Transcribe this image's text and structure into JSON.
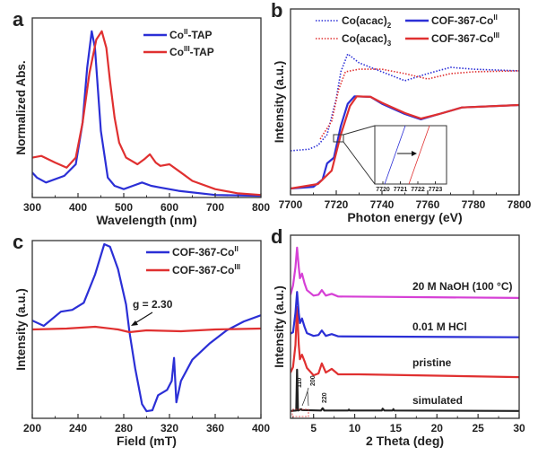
{
  "chart_data": [
    {
      "id": "a",
      "panel_label": "a",
      "type": "line",
      "xlabel": "Wavelength (nm)",
      "ylabel": "Normalized Abs.",
      "xlim": [
        300,
        800
      ],
      "ylim": [
        0,
        1.08
      ],
      "xticks": [
        300,
        400,
        500,
        600,
        700,
        800
      ],
      "xminor": 50,
      "series": [
        {
          "name": {
            "base": "Co",
            "sup": "II",
            "suffix": "-TAP"
          },
          "color": "#2b2fd6",
          "style": "solid",
          "points": [
            [
              300,
              0.15
            ],
            [
              310,
              0.12
            ],
            [
              330,
              0.09
            ],
            [
              370,
              0.13
            ],
            [
              395,
              0.2
            ],
            [
              410,
              0.45
            ],
            [
              420,
              0.78
            ],
            [
              430,
              1.0
            ],
            [
              437,
              0.9
            ],
            [
              450,
              0.4
            ],
            [
              465,
              0.12
            ],
            [
              480,
              0.07
            ],
            [
              500,
              0.05
            ],
            [
              520,
              0.07
            ],
            [
              540,
              0.09
            ],
            [
              560,
              0.07
            ],
            [
              580,
              0.06
            ],
            [
              620,
              0.04
            ],
            [
              700,
              0.015
            ],
            [
              800,
              0.01
            ]
          ]
        },
        {
          "name": {
            "base": "Co",
            "sup": "III",
            "suffix": "-TAP"
          },
          "color": "#e03030",
          "style": "solid",
          "points": [
            [
              300,
              0.24
            ],
            [
              320,
              0.25
            ],
            [
              350,
              0.21
            ],
            [
              375,
              0.18
            ],
            [
              395,
              0.24
            ],
            [
              410,
              0.45
            ],
            [
              425,
              0.75
            ],
            [
              440,
              0.95
            ],
            [
              452,
              1.0
            ],
            [
              462,
              0.9
            ],
            [
              470,
              0.7
            ],
            [
              480,
              0.48
            ],
            [
              490,
              0.33
            ],
            [
              505,
              0.24
            ],
            [
              530,
              0.2
            ],
            [
              545,
              0.23
            ],
            [
              557,
              0.26
            ],
            [
              570,
              0.21
            ],
            [
              580,
              0.19
            ],
            [
              600,
              0.2
            ],
            [
              625,
              0.15
            ],
            [
              650,
              0.1
            ],
            [
              700,
              0.05
            ],
            [
              750,
              0.025
            ],
            [
              800,
              0.015
            ]
          ]
        }
      ]
    },
    {
      "id": "b",
      "panel_label": "b",
      "type": "line",
      "xlabel": "Photon energy (eV)",
      "ylabel": "Intensity (a.u.)",
      "xlim": [
        7700,
        7800
      ],
      "ylim": [
        0,
        1
      ],
      "xticks": [
        7700,
        7720,
        7740,
        7760,
        7780,
        7800
      ],
      "xminor": 10,
      "inset": {
        "xticks": [
          "7720",
          "7721",
          "7722",
          "7723"
        ]
      },
      "series": [
        {
          "name": {
            "base": "Co(acac)",
            "sub": "2"
          },
          "color": "#2b2fd6",
          "style": "dotted",
          "points": [
            [
              7700,
              0.237
            ],
            [
              7708,
              0.245
            ],
            [
              7712,
              0.266
            ],
            [
              7716,
              0.324
            ],
            [
              7720,
              0.517
            ],
            [
              7722,
              0.662
            ],
            [
              7725,
              0.758
            ],
            [
              7730,
              0.71
            ],
            [
              7740,
              0.662
            ],
            [
              7750,
              0.614
            ],
            [
              7760,
              0.652
            ],
            [
              7770,
              0.686
            ],
            [
              7780,
              0.676
            ],
            [
              7800,
              0.667
            ]
          ]
        },
        {
          "name": {
            "base": "Co(acac)",
            "sub": "3"
          },
          "color": "#e03030",
          "style": "dotted",
          "points": [
            [
              7713,
              0.3
            ],
            [
              7718,
              0.396
            ],
            [
              7721,
              0.565
            ],
            [
              7724,
              0.662
            ],
            [
              7730,
              0.676
            ],
            [
              7740,
              0.676
            ],
            [
              7750,
              0.652
            ],
            [
              7760,
              0.623
            ],
            [
              7770,
              0.652
            ],
            [
              7780,
              0.662
            ],
            [
              7800,
              0.667
            ]
          ]
        },
        {
          "name": {
            "base": "COF-367-Co",
            "sup": "II"
          },
          "color": "#2b2fd6",
          "style": "solid",
          "points": [
            [
              7700,
              0.034
            ],
            [
              7710,
              0.043
            ],
            [
              7714,
              0.082
            ],
            [
              7716,
              0.169
            ],
            [
              7719,
              0.2
            ],
            [
              7722,
              0.37
            ],
            [
              7725,
              0.49
            ],
            [
              7728,
              0.53
            ],
            [
              7735,
              0.527
            ],
            [
              7740,
              0.49
            ],
            [
              7750,
              0.435
            ],
            [
              7757,
              0.406
            ],
            [
              7765,
              0.435
            ],
            [
              7775,
              0.47
            ],
            [
              7800,
              0.483
            ]
          ]
        },
        {
          "name": {
            "base": "COF-367-Co",
            "sup": "III"
          },
          "color": "#e03030",
          "style": "solid",
          "points": [
            [
              7700,
              0.034
            ],
            [
              7712,
              0.058
            ],
            [
              7718,
              0.13
            ],
            [
              7722,
              0.324
            ],
            [
              7726,
              0.478
            ],
            [
              7729,
              0.53
            ],
            [
              7735,
              0.527
            ],
            [
              7740,
              0.495
            ],
            [
              7750,
              0.44
            ],
            [
              7757,
              0.41
            ],
            [
              7765,
              0.435
            ],
            [
              7775,
              0.47
            ],
            [
              7800,
              0.483
            ]
          ]
        }
      ]
    },
    {
      "id": "c",
      "panel_label": "c",
      "type": "line",
      "xlabel": "Field (mT)",
      "ylabel": "Intensity (a.u.)",
      "xlim": [
        200,
        400
      ],
      "ylim": [
        0,
        1
      ],
      "xticks": [
        200,
        240,
        280,
        320,
        360,
        400
      ],
      "xminor": 20,
      "annotations": [
        "g = 2.30"
      ],
      "series": [
        {
          "name": {
            "base": "COF-367-Co",
            "sup": "II"
          },
          "color": "#2b2fd6",
          "style": "solid",
          "points": [
            [
              200,
              0.55
            ],
            [
              210,
              0.52
            ],
            [
              225,
              0.6
            ],
            [
              235,
              0.61
            ],
            [
              245,
              0.65
            ],
            [
              255,
              0.81
            ],
            [
              263,
              0.98
            ],
            [
              268,
              0.965
            ],
            [
              275,
              0.84
            ],
            [
              282,
              0.64
            ],
            [
              285,
              0.485
            ],
            [
              290,
              0.28
            ],
            [
              296,
              0.08
            ],
            [
              300,
              0.04
            ],
            [
              305,
              0.045
            ],
            [
              310,
              0.13
            ],
            [
              318,
              0.16
            ],
            [
              322,
              0.21
            ],
            [
              324,
              0.34
            ],
            [
              326,
              0.09
            ],
            [
              330,
              0.21
            ],
            [
              340,
              0.33
            ],
            [
              355,
              0.42
            ],
            [
              370,
              0.495
            ],
            [
              385,
              0.545
            ],
            [
              400,
              0.58
            ]
          ]
        },
        {
          "name": {
            "base": "COF-367-Co",
            "sup": "III"
          },
          "color": "#e03030",
          "style": "solid",
          "points": [
            [
              200,
              0.5
            ],
            [
              230,
              0.505
            ],
            [
              255,
              0.515
            ],
            [
              275,
              0.5
            ],
            [
              285,
              0.485
            ],
            [
              300,
              0.495
            ],
            [
              330,
              0.49
            ],
            [
              360,
              0.5
            ],
            [
              400,
              0.505
            ]
          ]
        }
      ]
    },
    {
      "id": "d",
      "panel_label": "d",
      "type": "line",
      "xlabel": "2 Theta (deg)",
      "ylabel": "Intensity (a.u.)",
      "xlim": [
        2.2,
        30
      ],
      "ylim": [
        0,
        4
      ],
      "xticks": [
        5,
        10,
        15,
        20,
        25,
        30
      ],
      "xminor": 2.5,
      "peak_labels": [
        "110",
        "200",
        "220"
      ],
      "series": [
        {
          "name": "simulated",
          "color": "#222222",
          "style": "solid",
          "points": [
            [
              2.2,
              0.16
            ],
            [
              2.9,
              0.17
            ],
            [
              3.0,
              1.06
            ],
            [
              3.1,
              0.17
            ],
            [
              3.5,
              0.2
            ],
            [
              3.6,
              0.18
            ],
            [
              5.9,
              0.17
            ],
            [
              6.1,
              0.22
            ],
            [
              6.3,
              0.17
            ],
            [
              9.2,
              0.17
            ],
            [
              9.3,
              0.19
            ],
            [
              9.4,
              0.17
            ],
            [
              13.3,
              0.17
            ],
            [
              13.4,
              0.21
            ],
            [
              13.6,
              0.17
            ],
            [
              14.6,
              0.17
            ],
            [
              14.7,
              0.2
            ],
            [
              14.8,
              0.17
            ],
            [
              30,
              0.16
            ]
          ]
        },
        {
          "name": "pristine",
          "color": "#e03030",
          "style": "solid",
          "points": [
            [
              2.2,
              1.0
            ],
            [
              2.5,
              1.12
            ],
            [
              2.8,
              1.6
            ],
            [
              3.0,
              2.43
            ],
            [
              3.2,
              1.6
            ],
            [
              3.35,
              1.29
            ],
            [
              3.6,
              1.39
            ],
            [
              3.9,
              1.25
            ],
            [
              4.2,
              1.1
            ],
            [
              5.0,
              0.94
            ],
            [
              5.6,
              0.98
            ],
            [
              6.0,
              1.2
            ],
            [
              6.5,
              1.0
            ],
            [
              7.2,
              1.08
            ],
            [
              8,
              0.96
            ],
            [
              10.5,
              0.96
            ],
            [
              30,
              0.9
            ]
          ]
        },
        {
          "name": "0.01 M HCl",
          "color": "#2b2fd6",
          "style": "solid",
          "points": [
            [
              2.2,
              1.85
            ],
            [
              2.5,
              1.88
            ],
            [
              2.8,
              2.3
            ],
            [
              3.0,
              2.76
            ],
            [
              3.2,
              2.3
            ],
            [
              3.35,
              2.08
            ],
            [
              3.6,
              2.18
            ],
            [
              3.9,
              2.0
            ],
            [
              4.2,
              1.86
            ],
            [
              5.0,
              1.8
            ],
            [
              5.6,
              1.82
            ],
            [
              6.0,
              1.92
            ],
            [
              6.5,
              1.8
            ],
            [
              7.2,
              1.84
            ],
            [
              8,
              1.79
            ],
            [
              30,
              1.77
            ]
          ]
        },
        {
          "name": "20 M NaOH (100 °C)",
          "color": "#d640d6",
          "style": "solid",
          "points": [
            [
              2.2,
              2.7
            ],
            [
              2.5,
              2.9
            ],
            [
              2.8,
              3.3
            ],
            [
              3.0,
              3.73
            ],
            [
              3.2,
              3.3
            ],
            [
              3.35,
              3.06
            ],
            [
              3.6,
              3.16
            ],
            [
              3.9,
              2.95
            ],
            [
              4.2,
              2.8
            ],
            [
              5.0,
              2.68
            ],
            [
              5.6,
              2.7
            ],
            [
              6.0,
              2.8
            ],
            [
              6.5,
              2.68
            ],
            [
              7.2,
              2.72
            ],
            [
              8,
              2.66
            ],
            [
              30,
              2.63
            ]
          ]
        }
      ]
    }
  ]
}
